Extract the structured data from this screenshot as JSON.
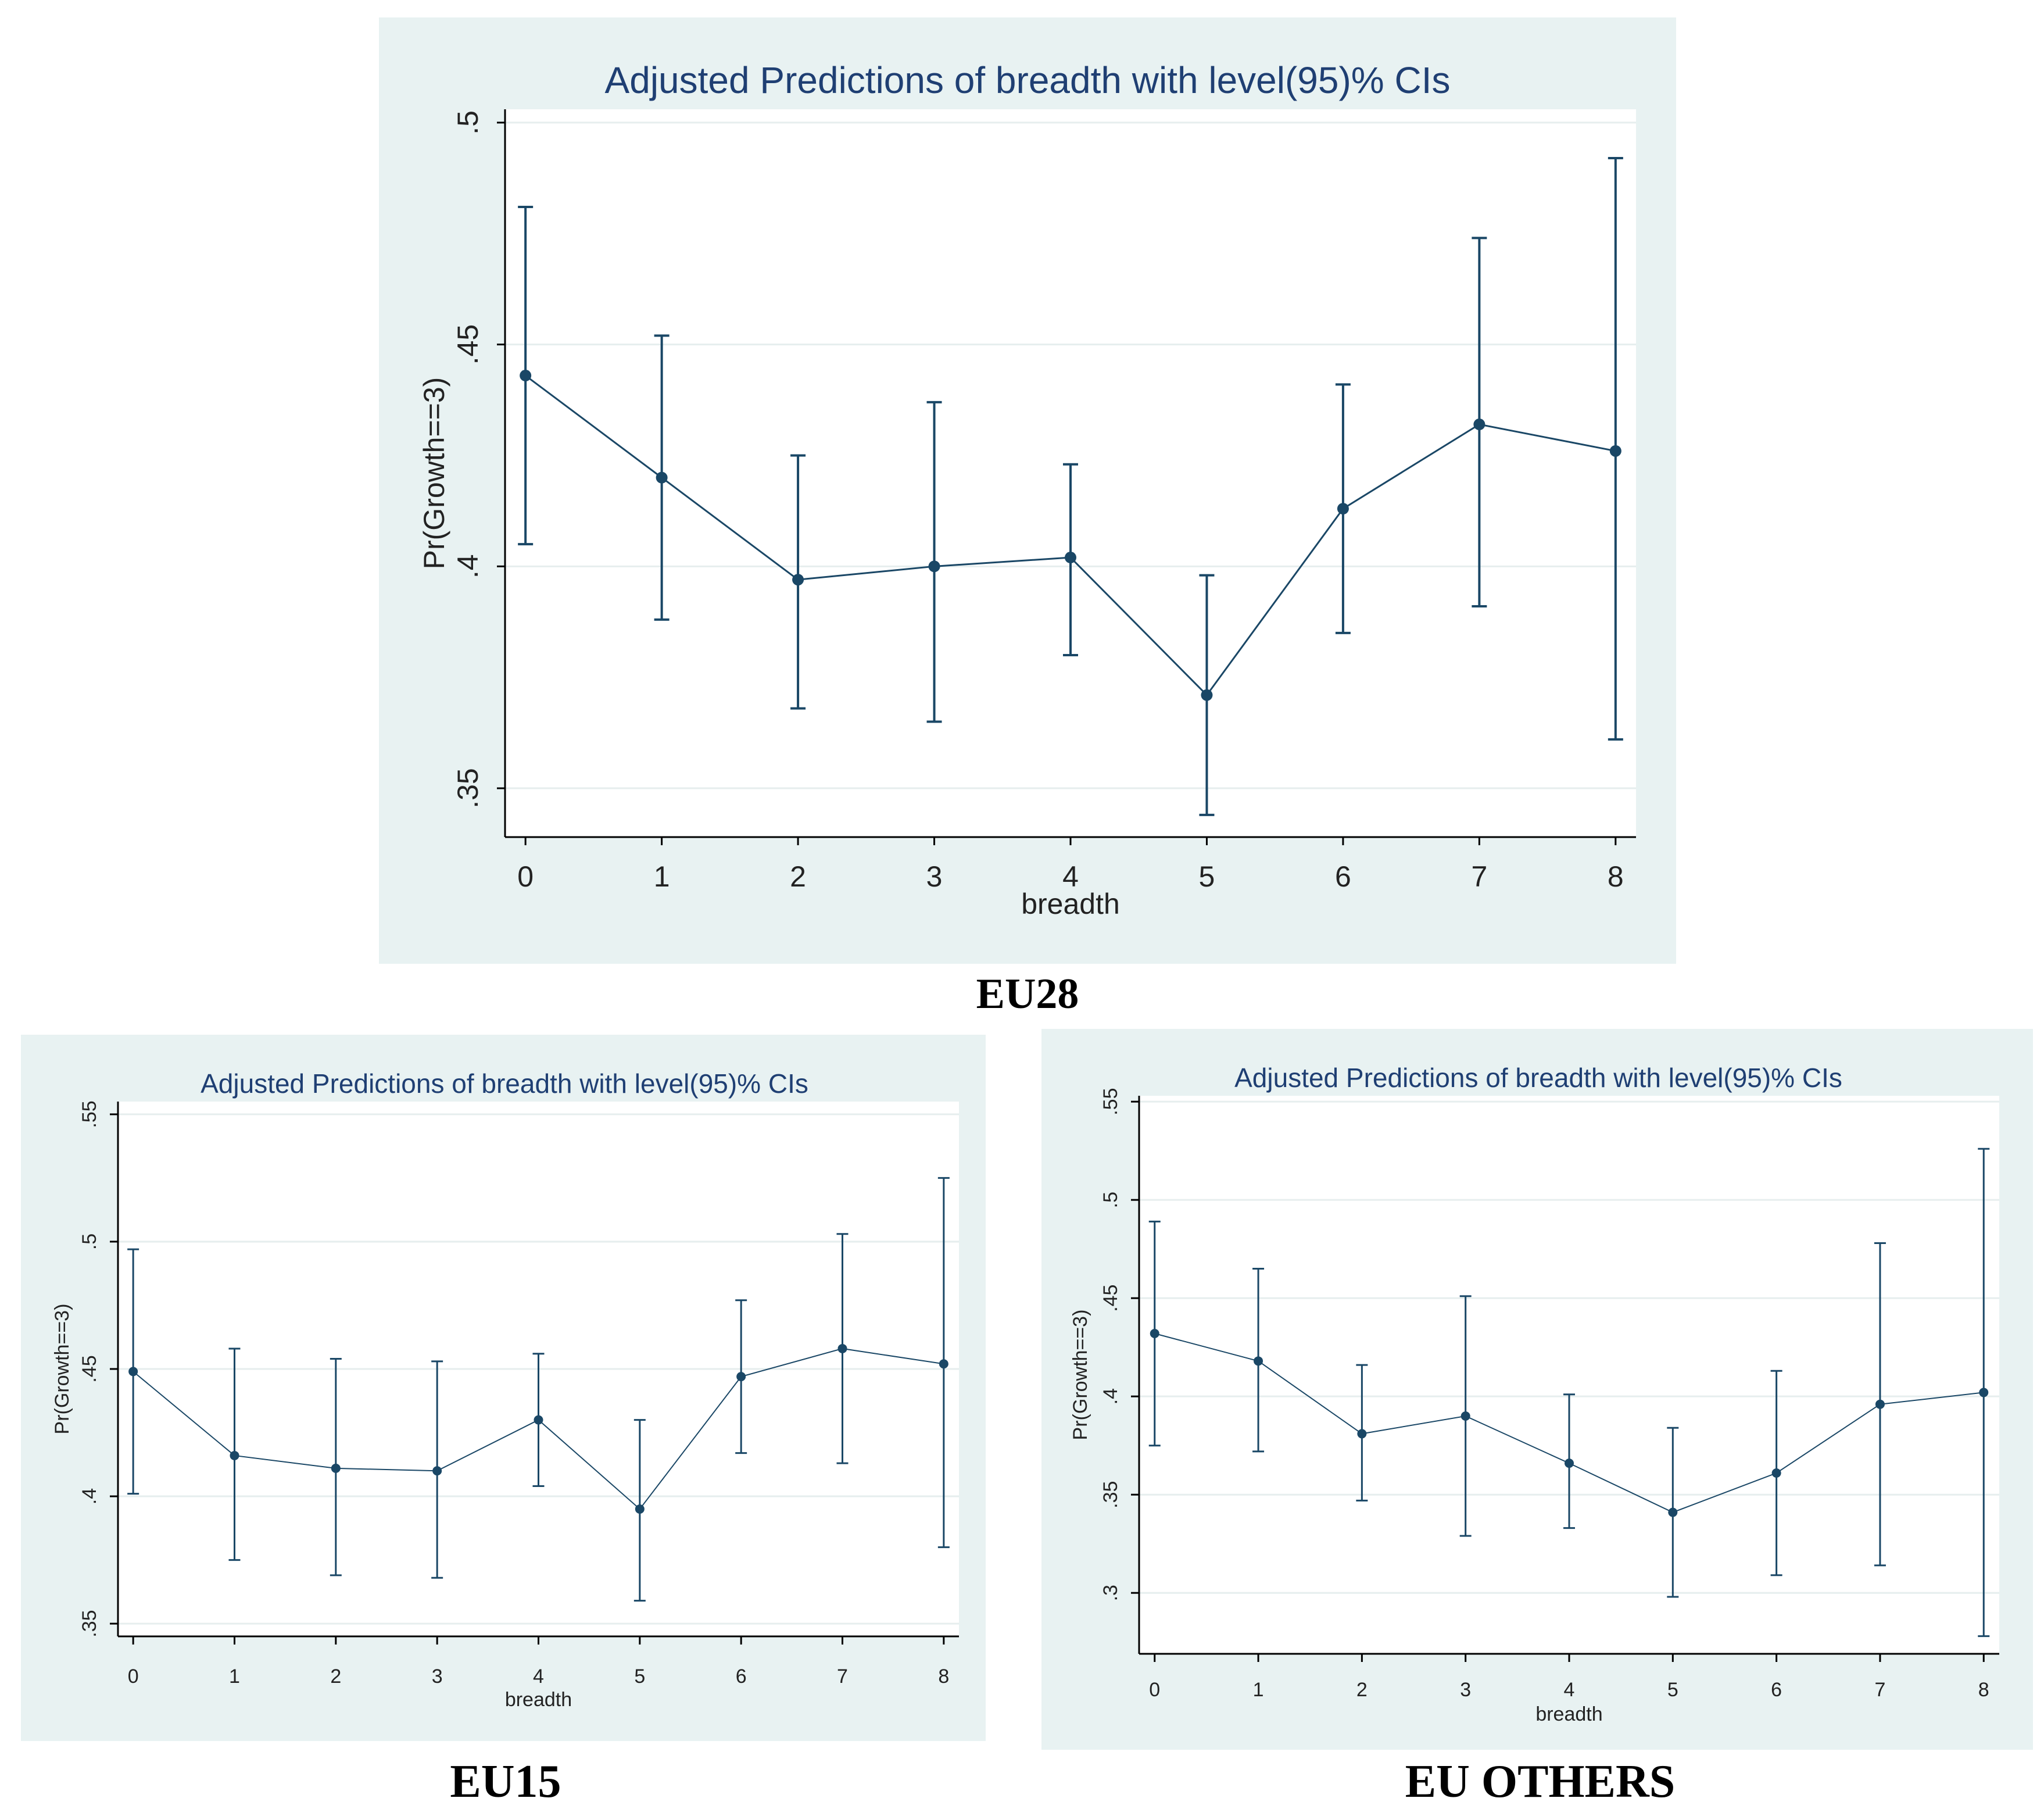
{
  "colors": {
    "panel_bg": "#e8f2f2",
    "plot_bg": "#ffffff",
    "series": "#1a4766",
    "grid": "#e6eeee",
    "axis": "#000000"
  },
  "chart_data": [
    {
      "id": "eu28",
      "type": "line",
      "title": "Adjusted Predictions of breadth with level(95)% CIs",
      "caption": "EU28",
      "xlabel": "breadth",
      "ylabel": "Pr(Growth==3)",
      "x": [
        0,
        1,
        2,
        3,
        4,
        5,
        6,
        7,
        8
      ],
      "x_ticks": [
        "0",
        "1",
        "2",
        "3",
        "4",
        "5",
        "6",
        "7",
        "8"
      ],
      "y_ticks": [
        0.35,
        0.4,
        0.45,
        0.5
      ],
      "y_tick_labels": [
        ".35",
        ".4",
        ".45",
        ".5"
      ],
      "ylim": [
        0.339,
        0.503
      ],
      "xlim": [
        -0.15,
        8.15
      ],
      "grid": true,
      "series": [
        {
          "name": "Pr(Growth==3)",
          "values": [
            0.443,
            0.42,
            0.397,
            0.4,
            0.402,
            0.371,
            0.413,
            0.432,
            0.426
          ],
          "ci_low": [
            0.405,
            0.388,
            0.368,
            0.365,
            0.38,
            0.344,
            0.385,
            0.391,
            0.361
          ],
          "ci_high": [
            0.481,
            0.452,
            0.425,
            0.437,
            0.423,
            0.398,
            0.441,
            0.474,
            0.492
          ]
        }
      ]
    },
    {
      "id": "eu15",
      "type": "line",
      "title": "Adjusted Predictions of breadth with level(95)% CIs",
      "caption": "EU15",
      "xlabel": "breadth",
      "ylabel": "Pr(Growth==3)",
      "x": [
        0,
        1,
        2,
        3,
        4,
        5,
        6,
        7,
        8
      ],
      "x_ticks": [
        "0",
        "1",
        "2",
        "3",
        "4",
        "5",
        "6",
        "7",
        "8"
      ],
      "y_ticks": [
        0.35,
        0.4,
        0.45,
        0.5,
        0.55
      ],
      "y_tick_labels": [
        ".35",
        ".4",
        ".45",
        ".5",
        ".55"
      ],
      "ylim": [
        0.345,
        0.555
      ],
      "xlim": [
        -0.15,
        8.15
      ],
      "grid": true,
      "series": [
        {
          "name": "Pr(Growth==3)",
          "values": [
            0.449,
            0.416,
            0.411,
            0.41,
            0.43,
            0.395,
            0.447,
            0.458,
            0.452
          ],
          "ci_low": [
            0.401,
            0.375,
            0.369,
            0.368,
            0.404,
            0.359,
            0.417,
            0.413,
            0.38
          ],
          "ci_high": [
            0.497,
            0.458,
            0.454,
            0.453,
            0.456,
            0.43,
            0.477,
            0.503,
            0.525
          ]
        }
      ]
    },
    {
      "id": "eu_others",
      "type": "line",
      "title": "Adjusted Predictions of breadth with level(95)% CIs",
      "caption": "EU OTHERS",
      "xlabel": "breadth",
      "ylabel": "Pr(Growth==3)",
      "x": [
        0,
        1,
        2,
        3,
        4,
        5,
        6,
        7,
        8
      ],
      "x_ticks": [
        "0",
        "1",
        "2",
        "3",
        "4",
        "5",
        "6",
        "7",
        "8"
      ],
      "y_ticks": [
        0.3,
        0.35,
        0.4,
        0.45,
        0.5,
        0.55
      ],
      "y_tick_labels": [
        ".3",
        ".35",
        ".4",
        ".45",
        ".5",
        ".55"
      ],
      "ylim": [
        0.269,
        0.553
      ],
      "xlim": [
        -0.15,
        8.15
      ],
      "grid": true,
      "series": [
        {
          "name": "Pr(Growth==3)",
          "values": [
            0.432,
            0.418,
            0.381,
            0.39,
            0.366,
            0.341,
            0.361,
            0.396,
            0.402
          ],
          "ci_low": [
            0.375,
            0.372,
            0.347,
            0.329,
            0.333,
            0.298,
            0.309,
            0.314,
            0.278
          ],
          "ci_high": [
            0.489,
            0.465,
            0.416,
            0.451,
            0.401,
            0.384,
            0.413,
            0.478,
            0.526
          ]
        }
      ]
    }
  ]
}
